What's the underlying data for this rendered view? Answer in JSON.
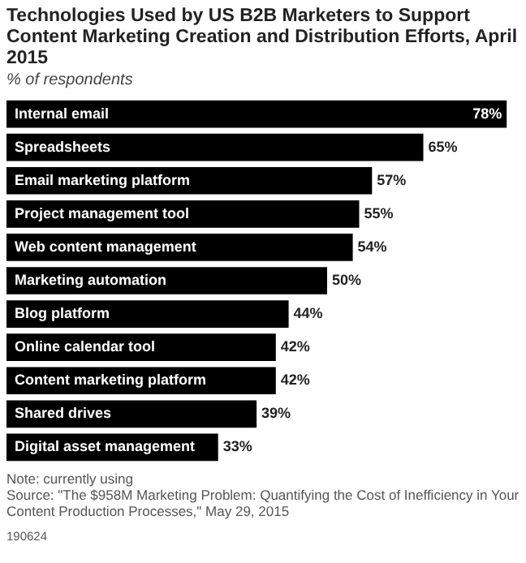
{
  "chart_data": {
    "type": "bar",
    "orientation": "horizontal",
    "title": "Technologies Used by US B2B Marketers to Support Content Marketing Creation and Distribution Efforts, April 2015",
    "subtitle": "% of respondents",
    "categories": [
      "Internal email",
      "Spreadsheets",
      "Email marketing platform",
      "Project management tool",
      "Web content management",
      "Marketing automation",
      "Blog platform",
      "Online calendar tool",
      "Content marketing platform",
      "Shared drives",
      "Digital asset management"
    ],
    "values": [
      78,
      65,
      57,
      55,
      54,
      50,
      44,
      42,
      42,
      39,
      33
    ],
    "value_labels": [
      "78%",
      "65%",
      "57%",
      "55%",
      "54%",
      "50%",
      "44%",
      "42%",
      "42%",
      "39%",
      "33%"
    ],
    "color": "#000000",
    "annotations": [
      "Note: currently using",
      "Source: \"The $958M Marketing Problem: Quantifying the Cost of Inefficiency in Your Content Production Processes,\" May 29, 2015",
      "190624"
    ]
  }
}
